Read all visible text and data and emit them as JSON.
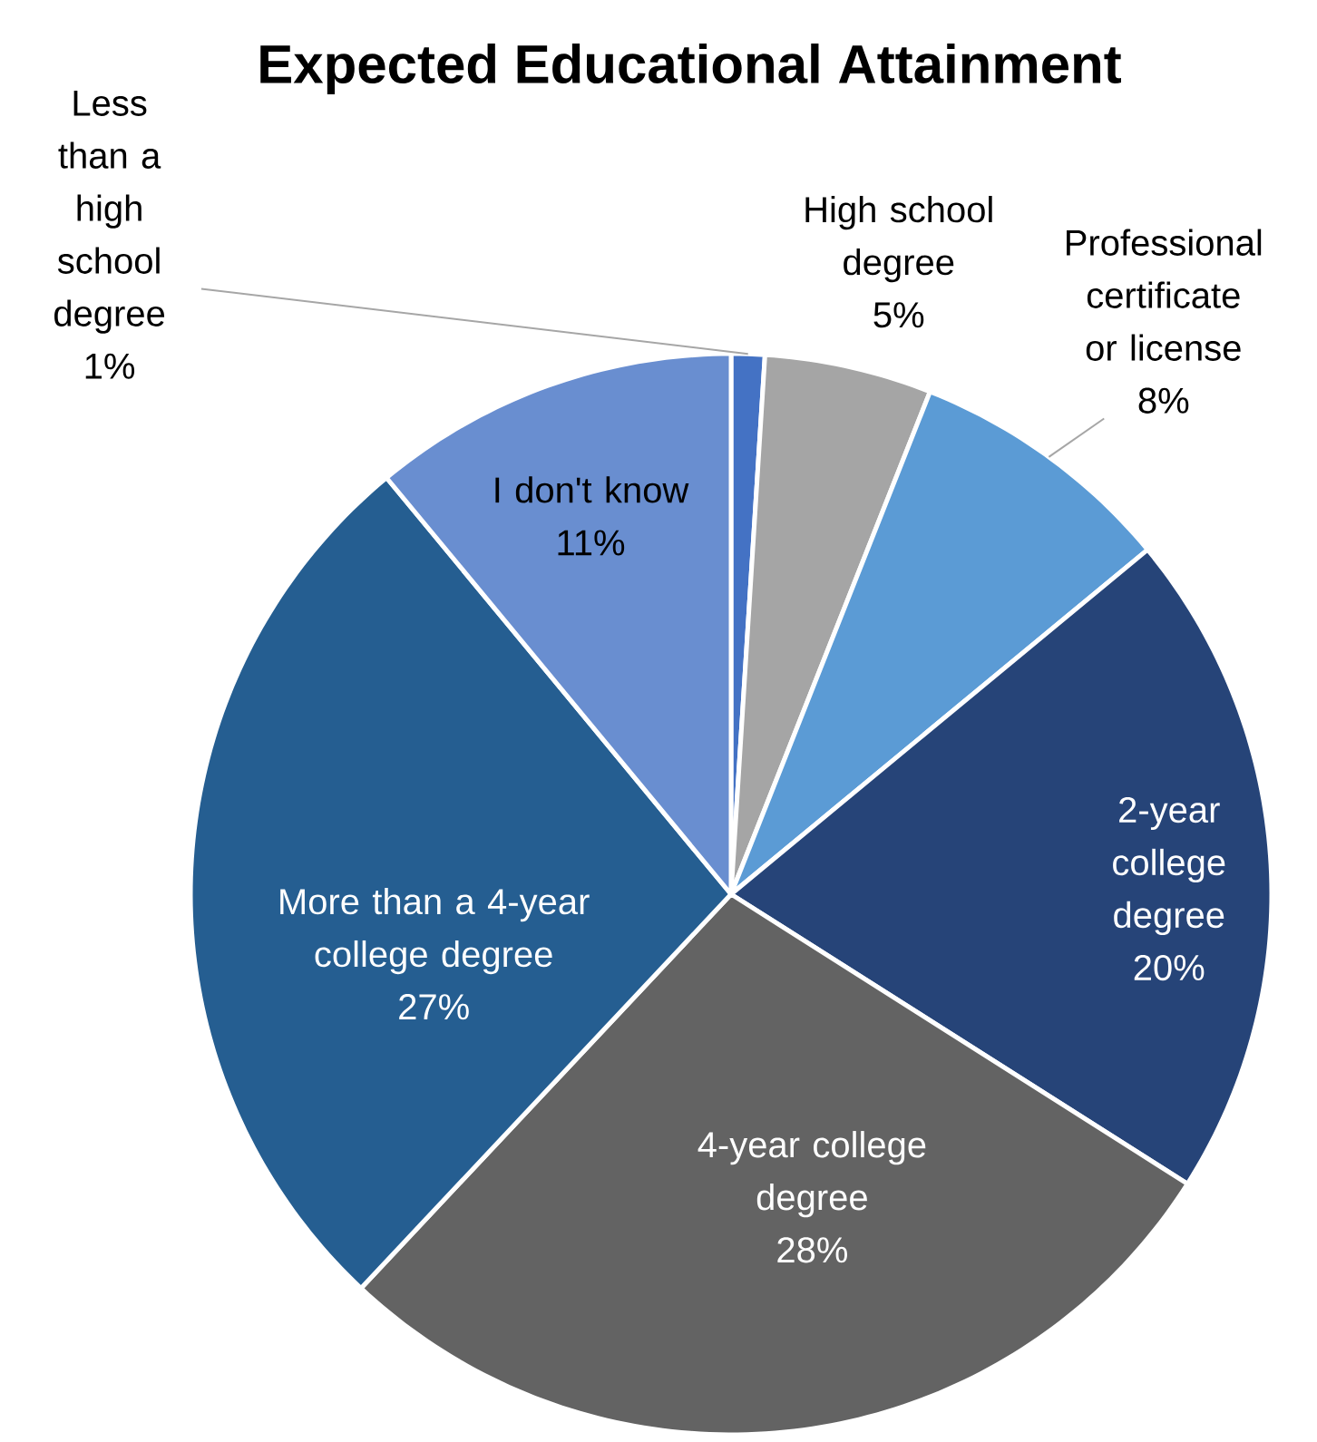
{
  "chart_data": {
    "type": "pie",
    "title": "Expected Educational Attainment",
    "categories": [
      "Less than a high school degree",
      "High school degree",
      "Professional certificate or license",
      "2-year college degree",
      "4-year college degree",
      "More than a 4-year college degree",
      "I don't know"
    ],
    "values": [
      1,
      5,
      8,
      20,
      28,
      27,
      11
    ],
    "value_labels": [
      "1%",
      "5%",
      "8%",
      "20%",
      "28%",
      "27%",
      "11%"
    ],
    "colors": [
      "#4472c4",
      "#a5a5a5",
      "#5b9bd5",
      "#264478",
      "#636363",
      "#255e91",
      "#698ed0"
    ]
  }
}
